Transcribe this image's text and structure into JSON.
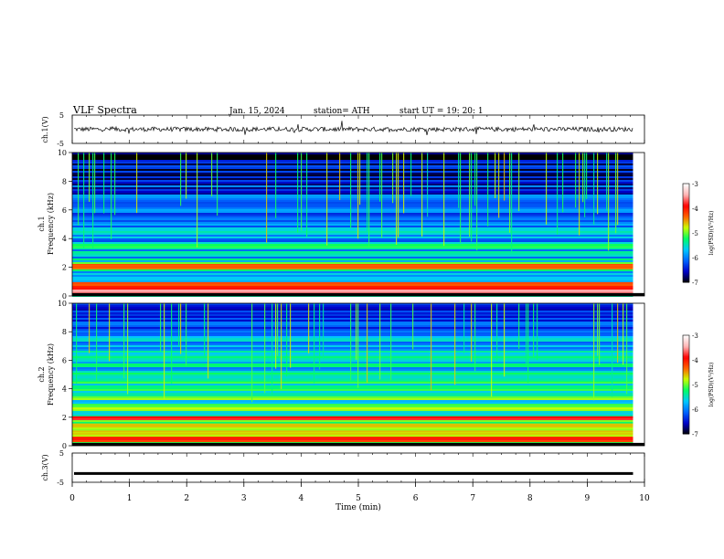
{
  "header": {
    "title": "VLF  Spectra",
    "date": "Jan. 15, 2024",
    "station": "station= ATH",
    "start_ut": "start  UT  =    19: 20: 1"
  },
  "chart_data": {
    "type": "heatmap",
    "x": {
      "label": "Time  (min)",
      "range": [
        0,
        10
      ],
      "ticks": [
        "0",
        "1",
        "2",
        "3",
        "4",
        "5",
        "6",
        "7",
        "8",
        "9",
        "10"
      ],
      "data_end": 9.8
    },
    "panels": [
      {
        "id": "ch1-waveform",
        "type": "line",
        "ylabel": "ch.1(V)",
        "ylim": [
          -5,
          5
        ],
        "yticks": [
          "5",
          "-5"
        ],
        "baseline": 0
      },
      {
        "id": "ch1-spectrogram",
        "type": "heatmap",
        "ylabel_top": "ch.1",
        "ylabel": "Frequency (kHz)",
        "ylim": [
          0,
          10
        ],
        "yticks": [
          "0",
          "2",
          "4",
          "6",
          "8",
          "10"
        ],
        "colorbar": {
          "label": "log(PSD)(V²/Hz)",
          "range": [
            -7,
            -3
          ],
          "ticks": [
            "-3",
            "-4",
            "-5",
            "-6",
            "-7"
          ],
          "colormap": [
            "#000000",
            "#0000c8",
            "#0064ff",
            "#00c8ff",
            "#00ff64",
            "#c8ff00",
            "#ff6400",
            "#ff0000",
            "#ffb4b4",
            "#ffffff"
          ]
        },
        "bands_khz": [
          {
            "f": 0.3,
            "level": -3.5
          },
          {
            "f": 0.6,
            "level": -4.0
          },
          {
            "f": 0.9,
            "level": -4.2
          },
          {
            "f": 2.1,
            "level": -4.3
          },
          {
            "f": 2.3,
            "level": -5.0
          },
          {
            "f": 3.5,
            "level": -5.2
          },
          {
            "f": 4.6,
            "level": -5.6
          },
          {
            "f": 6.0,
            "level": -5.8
          }
        ],
        "background_level": -5.9
      },
      {
        "id": "ch2-spectrogram",
        "type": "heatmap",
        "ylabel_top": "ch.2",
        "ylabel": "Frequency (kHz)",
        "ylim": [
          0,
          10
        ],
        "yticks": [
          "0",
          "2",
          "4",
          "6",
          "8",
          "10"
        ],
        "colorbar": {
          "label": "log(PSD)(V²/Hz)",
          "range": [
            -7,
            -3
          ],
          "ticks": [
            "-3",
            "-4",
            "-5",
            "-6",
            "-7"
          ],
          "colormap": [
            "#000000",
            "#0000c8",
            "#0064ff",
            "#00c8ff",
            "#00ff64",
            "#c8ff00",
            "#ff6400",
            "#ff0000",
            "#ffb4b4",
            "#ffffff"
          ]
        },
        "bands_khz": [
          {
            "f": 0.5,
            "level": -4.0
          },
          {
            "f": 1.0,
            "level": -4.6
          },
          {
            "f": 1.5,
            "level": -4.6
          },
          {
            "f": 2.0,
            "level": -3.9
          },
          {
            "f": 2.6,
            "level": -4.8
          },
          {
            "f": 3.4,
            "level": -5.0
          },
          {
            "f": 4.6,
            "level": -5.4
          }
        ],
        "background_level": -5.5
      },
      {
        "id": "ch3-waveform",
        "type": "line",
        "ylabel": "ch.3(V)",
        "ylim": [
          -5,
          5
        ],
        "yticks": [
          "5",
          "-5"
        ],
        "baseline": -2
      }
    ]
  }
}
